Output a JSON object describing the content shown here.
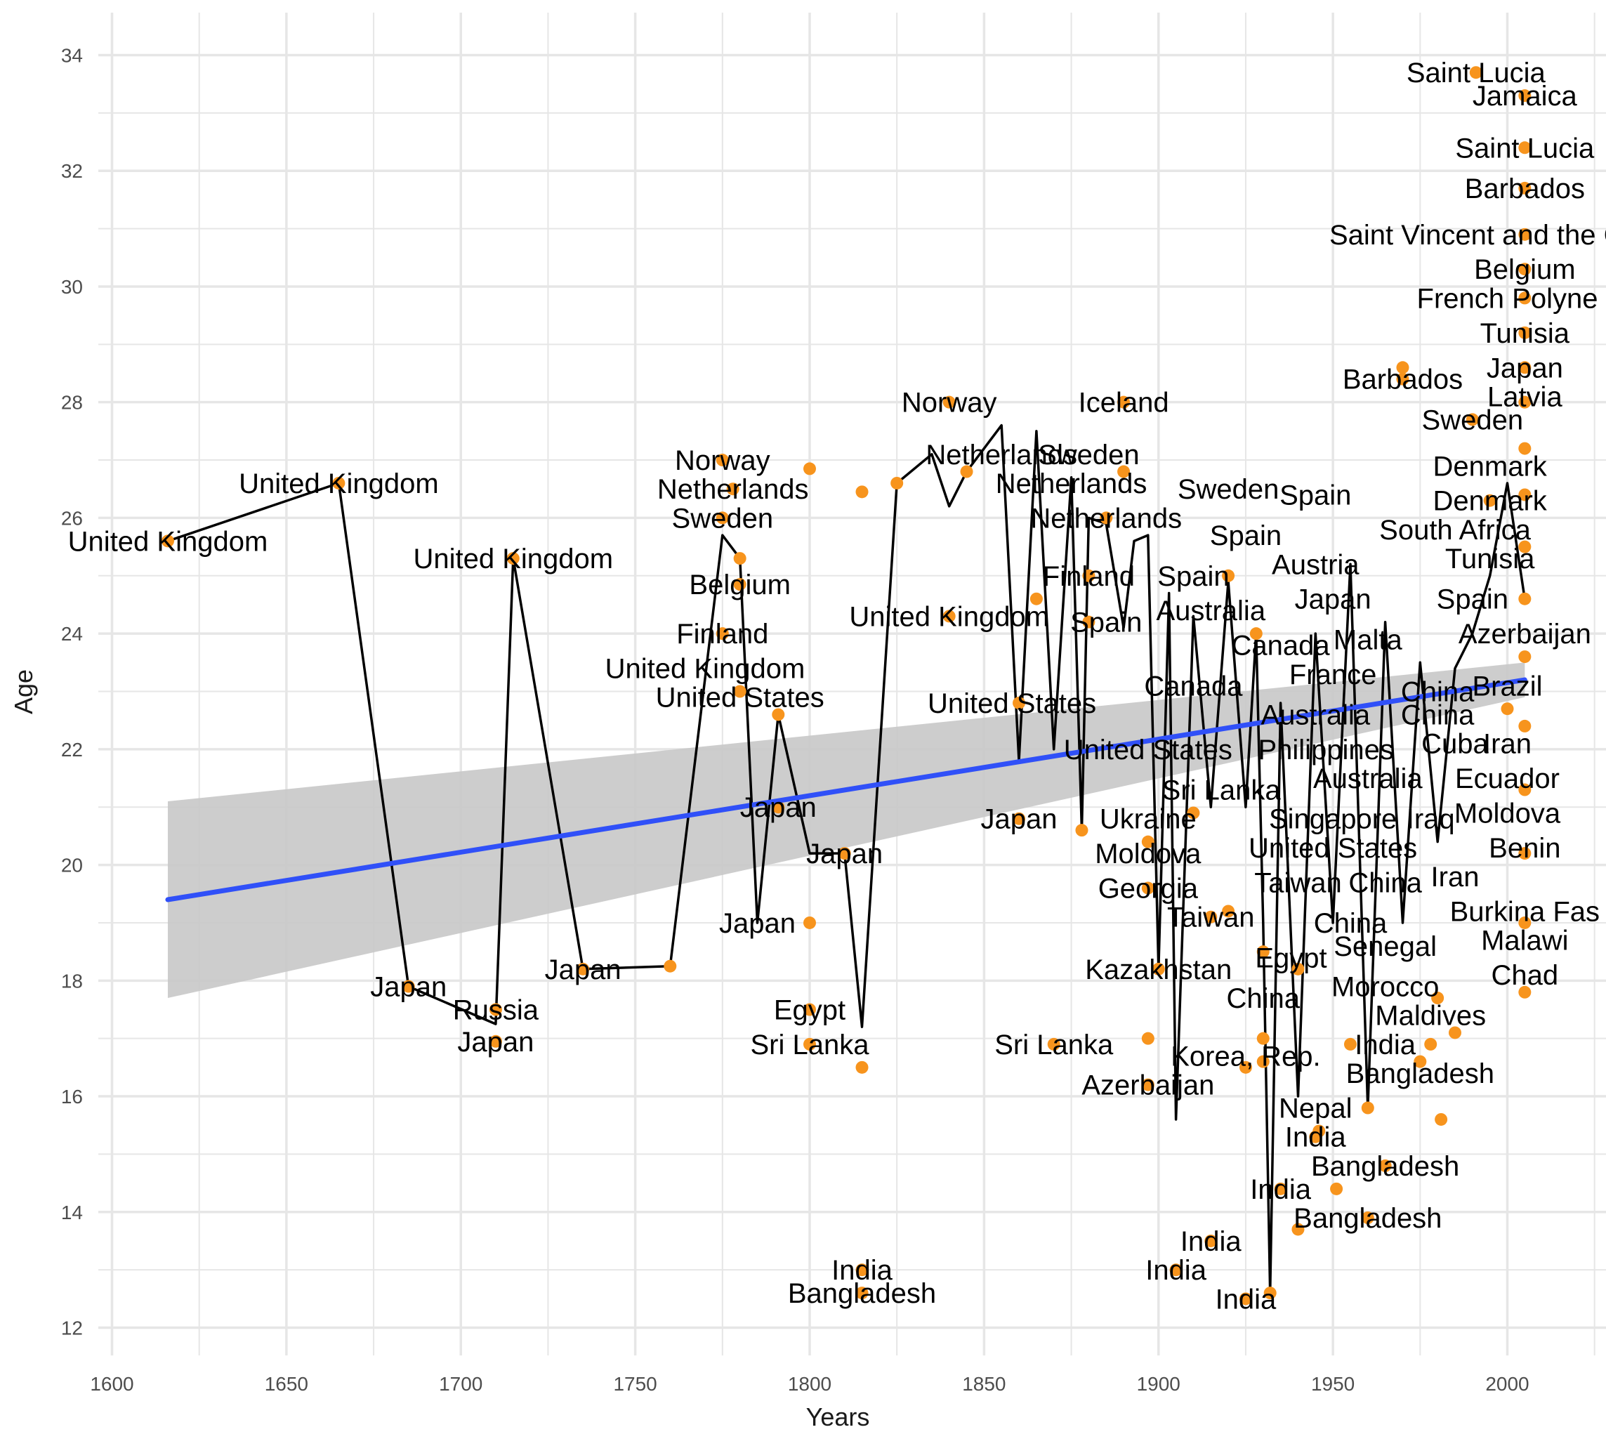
{
  "colors": {
    "points": "#F7941D",
    "line": "#000000",
    "trend": "#3050F8",
    "ribbon": "#C8C8C8",
    "grid": "#E6E6E6"
  },
  "chart_data": {
    "type": "scatter",
    "xlabel": "Years",
    "ylabel": "Age",
    "xlim": [
      1600,
      2025
    ],
    "ylim": [
      12,
      34.5
    ],
    "x_ticks": [
      1600,
      1650,
      1700,
      1750,
      1800,
      1850,
      1900,
      1950,
      2000
    ],
    "y_ticks": [
      12,
      14,
      16,
      18,
      20,
      22,
      24,
      26,
      28,
      30,
      32,
      34
    ],
    "grid": true,
    "trend": {
      "method": "linear",
      "x": [
        1616,
        2005
      ],
      "y": [
        19.4,
        23.2
      ],
      "ci_lower": [
        17.7,
        22.9
      ],
      "ci_upper": [
        21.1,
        23.5
      ]
    },
    "points": [
      {
        "x": 1616,
        "y": 25.6
      },
      {
        "x": 1665,
        "y": 26.6
      },
      {
        "x": 1685,
        "y": 17.9
      },
      {
        "x": 1710,
        "y": 17.5
      },
      {
        "x": 1710,
        "y": 16.95
      },
      {
        "x": 1715,
        "y": 25.3
      },
      {
        "x": 1735,
        "y": 18.2
      },
      {
        "x": 1760,
        "y": 18.25
      },
      {
        "x": 1775,
        "y": 27.0
      },
      {
        "x": 1775,
        "y": 26.0
      },
      {
        "x": 1775,
        "y": 24.0
      },
      {
        "x": 1778,
        "y": 26.5
      },
      {
        "x": 1780,
        "y": 25.3
      },
      {
        "x": 1780,
        "y": 24.85
      },
      {
        "x": 1780,
        "y": 23.0
      },
      {
        "x": 1791,
        "y": 22.6
      },
      {
        "x": 1791,
        "y": 21.0
      },
      {
        "x": 1800,
        "y": 26.85
      },
      {
        "x": 1800,
        "y": 19.0
      },
      {
        "x": 1800,
        "y": 17.5
      },
      {
        "x": 1800,
        "y": 16.9
      },
      {
        "x": 1810,
        "y": 20.2
      },
      {
        "x": 1815,
        "y": 26.45
      },
      {
        "x": 1815,
        "y": 16.5
      },
      {
        "x": 1815,
        "y": 13.0
      },
      {
        "x": 1815,
        "y": 12.6
      },
      {
        "x": 1825,
        "y": 26.6
      },
      {
        "x": 1840,
        "y": 28.0
      },
      {
        "x": 1840,
        "y": 24.3
      },
      {
        "x": 1845,
        "y": 26.8
      },
      {
        "x": 1860,
        "y": 22.8
      },
      {
        "x": 1860,
        "y": 20.8
      },
      {
        "x": 1865,
        "y": 24.6
      },
      {
        "x": 1870,
        "y": 16.9
      },
      {
        "x": 1878,
        "y": 20.6
      },
      {
        "x": 1880,
        "y": 25.0
      },
      {
        "x": 1880,
        "y": 24.2
      },
      {
        "x": 1885,
        "y": 26.0
      },
      {
        "x": 1890,
        "y": 26.8
      },
      {
        "x": 1890,
        "y": 28.0
      },
      {
        "x": 1897,
        "y": 17.0
      },
      {
        "x": 1897,
        "y": 16.2
      },
      {
        "x": 1897,
        "y": 19.6
      },
      {
        "x": 1897,
        "y": 20.4
      },
      {
        "x": 1900,
        "y": 18.2
      },
      {
        "x": 1905,
        "y": 13.0
      },
      {
        "x": 1910,
        "y": 20.9
      },
      {
        "x": 1915,
        "y": 13.5
      },
      {
        "x": 1915,
        "y": 19.1
      },
      {
        "x": 1920,
        "y": 25.0
      },
      {
        "x": 1920,
        "y": 19.2
      },
      {
        "x": 1925,
        "y": 16.5
      },
      {
        "x": 1925,
        "y": 12.5
      },
      {
        "x": 1928,
        "y": 24.0
      },
      {
        "x": 1930,
        "y": 17.0
      },
      {
        "x": 1930,
        "y": 16.6
      },
      {
        "x": 1930,
        "y": 18.5
      },
      {
        "x": 1932,
        "y": 12.6
      },
      {
        "x": 1935,
        "y": 14.4
      },
      {
        "x": 1940,
        "y": 13.7
      },
      {
        "x": 1940,
        "y": 18.2
      },
      {
        "x": 1945,
        "y": 15.3
      },
      {
        "x": 1946,
        "y": 15.4
      },
      {
        "x": 1951,
        "y": 14.4
      },
      {
        "x": 1955,
        "y": 16.9
      },
      {
        "x": 1960,
        "y": 15.8
      },
      {
        "x": 1960,
        "y": 13.9
      },
      {
        "x": 1965,
        "y": 14.8
      },
      {
        "x": 1970,
        "y": 28.6
      },
      {
        "x": 1970,
        "y": 28.4
      },
      {
        "x": 1975,
        "y": 16.6
      },
      {
        "x": 1978,
        "y": 16.9
      },
      {
        "x": 1980,
        "y": 17.7
      },
      {
        "x": 1981,
        "y": 15.6
      },
      {
        "x": 1985,
        "y": 17.1
      },
      {
        "x": 1990,
        "y": 27.7
      },
      {
        "x": 1991,
        "y": 33.7
      },
      {
        "x": 1995,
        "y": 26.3
      },
      {
        "x": 2000,
        "y": 22.7
      },
      {
        "x": 2005,
        "y": 33.3
      },
      {
        "x": 2005,
        "y": 32.4
      },
      {
        "x": 2005,
        "y": 31.7
      },
      {
        "x": 2005,
        "y": 30.9
      },
      {
        "x": 2005,
        "y": 30.3
      },
      {
        "x": 2005,
        "y": 29.8
      },
      {
        "x": 2005,
        "y": 29.2
      },
      {
        "x": 2005,
        "y": 28.6
      },
      {
        "x": 2005,
        "y": 28.0
      },
      {
        "x": 2005,
        "y": 27.2
      },
      {
        "x": 2005,
        "y": 26.4
      },
      {
        "x": 2005,
        "y": 25.5
      },
      {
        "x": 2005,
        "y": 24.6
      },
      {
        "x": 2005,
        "y": 23.6
      },
      {
        "x": 2005,
        "y": 22.4
      },
      {
        "x": 2005,
        "y": 21.3
      },
      {
        "x": 2005,
        "y": 20.2
      },
      {
        "x": 2005,
        "y": 19.0
      },
      {
        "x": 2005,
        "y": 17.8
      }
    ],
    "line": [
      {
        "x": 1616,
        "y": 25.6
      },
      {
        "x": 1665,
        "y": 26.6
      },
      {
        "x": 1685,
        "y": 17.9
      },
      {
        "x": 1710,
        "y": 17.25
      },
      {
        "x": 1715,
        "y": 25.3
      },
      {
        "x": 1735,
        "y": 18.2
      },
      {
        "x": 1760,
        "y": 18.25
      },
      {
        "x": 1775,
        "y": 25.7
      },
      {
        "x": 1780,
        "y": 25.3
      },
      {
        "x": 1785,
        "y": 19.0
      },
      {
        "x": 1791,
        "y": 22.6
      },
      {
        "x": 1800,
        "y": 20.2
      },
      {
        "x": 1810,
        "y": 20.2
      },
      {
        "x": 1815,
        "y": 17.2
      },
      {
        "x": 1825,
        "y": 26.6
      },
      {
        "x": 1835,
        "y": 27.1
      },
      {
        "x": 1840,
        "y": 26.2
      },
      {
        "x": 1845,
        "y": 26.8
      },
      {
        "x": 1855,
        "y": 27.6
      },
      {
        "x": 1860,
        "y": 21.8
      },
      {
        "x": 1865,
        "y": 27.5
      },
      {
        "x": 1870,
        "y": 22.0
      },
      {
        "x": 1875,
        "y": 26.7
      },
      {
        "x": 1878,
        "y": 20.6
      },
      {
        "x": 1880,
        "y": 26.0
      },
      {
        "x": 1885,
        "y": 25.9
      },
      {
        "x": 1890,
        "y": 24.1
      },
      {
        "x": 1893,
        "y": 25.6
      },
      {
        "x": 1897,
        "y": 25.7
      },
      {
        "x": 1900,
        "y": 18.2
      },
      {
        "x": 1903,
        "y": 24.7
      },
      {
        "x": 1905,
        "y": 15.6
      },
      {
        "x": 1910,
        "y": 24.3
      },
      {
        "x": 1915,
        "y": 21.0
      },
      {
        "x": 1920,
        "y": 24.9
      },
      {
        "x": 1925,
        "y": 21.0
      },
      {
        "x": 1928,
        "y": 24.0
      },
      {
        "x": 1930,
        "y": 19.0
      },
      {
        "x": 1932,
        "y": 12.6
      },
      {
        "x": 1935,
        "y": 22.8
      },
      {
        "x": 1940,
        "y": 16.0
      },
      {
        "x": 1945,
        "y": 24.0
      },
      {
        "x": 1950,
        "y": 19.0
      },
      {
        "x": 1955,
        "y": 25.2
      },
      {
        "x": 1960,
        "y": 15.8
      },
      {
        "x": 1965,
        "y": 24.2
      },
      {
        "x": 1970,
        "y": 19.0
      },
      {
        "x": 1975,
        "y": 23.5
      },
      {
        "x": 1980,
        "y": 20.4
      },
      {
        "x": 1985,
        "y": 23.4
      },
      {
        "x": 1990,
        "y": 24.0
      },
      {
        "x": 1995,
        "y": 25.0
      },
      {
        "x": 2000,
        "y": 26.6
      },
      {
        "x": 2005,
        "y": 24.6
      }
    ],
    "labels": [
      {
        "text": "United Kingdom",
        "x": 1616,
        "y": 25.6
      },
      {
        "text": "United Kingdom",
        "x": 1665,
        "y": 26.6
      },
      {
        "text": "United Kingdom",
        "x": 1715,
        "y": 25.3
      },
      {
        "text": "Japan",
        "x": 1685,
        "y": 17.9
      },
      {
        "text": "Russia",
        "x": 1710,
        "y": 17.5
      },
      {
        "text": "Japan",
        "x": 1710,
        "y": 16.95
      },
      {
        "text": "Japan",
        "x": 1735,
        "y": 18.2
      },
      {
        "text": "Norway",
        "x": 1775,
        "y": 27.0
      },
      {
        "text": "Netherlands",
        "x": 1778,
        "y": 26.5
      },
      {
        "text": "Sweden",
        "x": 1775,
        "y": 26.0
      },
      {
        "text": "Belgium",
        "x": 1780,
        "y": 24.85
      },
      {
        "text": "Finland",
        "x": 1775,
        "y": 24.0
      },
      {
        "text": "United Kingdom",
        "x": 1770,
        "y": 23.4
      },
      {
        "text": "United States",
        "x": 1780,
        "y": 22.9
      },
      {
        "text": "Japan",
        "x": 1791,
        "y": 21.0
      },
      {
        "text": "Japan",
        "x": 1810,
        "y": 20.2
      },
      {
        "text": "Japan",
        "x": 1785,
        "y": 19.0
      },
      {
        "text": "Egypt",
        "x": 1800,
        "y": 17.5
      },
      {
        "text": "Sri Lanka",
        "x": 1800,
        "y": 16.9
      },
      {
        "text": "India",
        "x": 1815,
        "y": 13.0
      },
      {
        "text": "Bangladesh",
        "x": 1815,
        "y": 12.6
      },
      {
        "text": "Norway",
        "x": 1840,
        "y": 28.0
      },
      {
        "text": "Netherlands",
        "x": 1855,
        "y": 27.1
      },
      {
        "text": "Sweden",
        "x": 1880,
        "y": 27.1
      },
      {
        "text": "Iceland",
        "x": 1890,
        "y": 28.0
      },
      {
        "text": "Netherlands",
        "x": 1875,
        "y": 26.6
      },
      {
        "text": "Netherlands",
        "x": 1885,
        "y": 26.0
      },
      {
        "text": "Finland",
        "x": 1880,
        "y": 25.0
      },
      {
        "text": "Spain",
        "x": 1910,
        "y": 25.0
      },
      {
        "text": "United Kingdom",
        "x": 1840,
        "y": 24.3
      },
      {
        "text": "Spain",
        "x": 1885,
        "y": 24.2
      },
      {
        "text": "Australia",
        "x": 1915,
        "y": 24.4
      },
      {
        "text": "Sweden",
        "x": 1920,
        "y": 26.5
      },
      {
        "text": "Spain",
        "x": 1945,
        "y": 26.4
      },
      {
        "text": "Spain",
        "x": 1925,
        "y": 25.7
      },
      {
        "text": "United States",
        "x": 1858,
        "y": 22.8
      },
      {
        "text": "United States",
        "x": 1897,
        "y": 22.0
      },
      {
        "text": "Canada",
        "x": 1910,
        "y": 23.1
      },
      {
        "text": "Canada",
        "x": 1935,
        "y": 23.8
      },
      {
        "text": "Austria",
        "x": 1945,
        "y": 25.2
      },
      {
        "text": "Japan",
        "x": 1950,
        "y": 24.6
      },
      {
        "text": "Malta",
        "x": 1960,
        "y": 23.9
      },
      {
        "text": "France",
        "x": 1950,
        "y": 23.3
      },
      {
        "text": "Australia",
        "x": 1945,
        "y": 22.6
      },
      {
        "text": "Philippines",
        "x": 1948,
        "y": 22.0
      },
      {
        "text": "Australia",
        "x": 1960,
        "y": 21.5
      },
      {
        "text": "Sri Lanka",
        "x": 1918,
        "y": 21.3
      },
      {
        "text": "Ukraine",
        "x": 1897,
        "y": 20.8
      },
      {
        "text": "Japan",
        "x": 1860,
        "y": 20.8
      },
      {
        "text": "Moldova",
        "x": 1897,
        "y": 20.2
      },
      {
        "text": "Singapore",
        "x": 1950,
        "y": 20.8
      },
      {
        "text": "Iraq",
        "x": 1978,
        "y": 20.8
      },
      {
        "text": "United States",
        "x": 1950,
        "y": 20.3
      },
      {
        "text": "Georgia",
        "x": 1897,
        "y": 19.6
      },
      {
        "text": "Taiwan",
        "x": 1940,
        "y": 19.7
      },
      {
        "text": "China",
        "x": 1965,
        "y": 19.7
      },
      {
        "text": "Taiwan",
        "x": 1915,
        "y": 19.1
      },
      {
        "text": "China",
        "x": 1955,
        "y": 19.0
      },
      {
        "text": "Senegal",
        "x": 1965,
        "y": 18.6
      },
      {
        "text": "Egypt",
        "x": 1938,
        "y": 18.4
      },
      {
        "text": "Kazakhstan",
        "x": 1900,
        "y": 18.2
      },
      {
        "text": "Morocco",
        "x": 1965,
        "y": 17.9
      },
      {
        "text": "China",
        "x": 1930,
        "y": 17.7
      },
      {
        "text": "Maldives",
        "x": 1978,
        "y": 17.4
      },
      {
        "text": "India",
        "x": 1965,
        "y": 16.9
      },
      {
        "text": "Sri Lanka",
        "x": 1870,
        "y": 16.9
      },
      {
        "text": "Korea, Rep.",
        "x": 1925,
        "y": 16.7
      },
      {
        "text": "Azerbaijan",
        "x": 1897,
        "y": 16.2
      },
      {
        "text": "Bangladesh",
        "x": 1975,
        "y": 16.4
      },
      {
        "text": "Nepal",
        "x": 1945,
        "y": 15.8
      },
      {
        "text": "India",
        "x": 1945,
        "y": 15.3
      },
      {
        "text": "Bangladesh",
        "x": 1965,
        "y": 14.8
      },
      {
        "text": "India",
        "x": 1935,
        "y": 14.4
      },
      {
        "text": "Bangladesh",
        "x": 1960,
        "y": 13.9
      },
      {
        "text": "India",
        "x": 1915,
        "y": 13.5
      },
      {
        "text": "India",
        "x": 1905,
        "y": 13.0
      },
      {
        "text": "India",
        "x": 1925,
        "y": 12.5
      },
      {
        "text": "Saint Lucia",
        "x": 1991,
        "y": 33.7
      },
      {
        "text": "Jamaica",
        "x": 2005,
        "y": 33.3
      },
      {
        "text": "Saint Lucia",
        "x": 2005,
        "y": 32.4
      },
      {
        "text": "Barbados",
        "x": 2005,
        "y": 31.7
      },
      {
        "text": "Saint Vincent and the Gre",
        "x": 1995,
        "y": 30.9
      },
      {
        "text": "Belgium",
        "x": 2005,
        "y": 30.3
      },
      {
        "text": "French Polyne",
        "x": 2000,
        "y": 29.8
      },
      {
        "text": "Tunisia",
        "x": 2005,
        "y": 29.2
      },
      {
        "text": "Barbados",
        "x": 1970,
        "y": 28.4
      },
      {
        "text": "Japan",
        "x": 2005,
        "y": 28.6
      },
      {
        "text": "Latvia",
        "x": 2005,
        "y": 28.1
      },
      {
        "text": "Sweden",
        "x": 1990,
        "y": 27.7
      },
      {
        "text": "Denmark",
        "x": 1995,
        "y": 26.9
      },
      {
        "text": "Denmark",
        "x": 1995,
        "y": 26.3
      },
      {
        "text": "South Africa",
        "x": 1985,
        "y": 25.8
      },
      {
        "text": "Tunisia",
        "x": 1995,
        "y": 25.3
      },
      {
        "text": "Spain",
        "x": 1990,
        "y": 24.6
      },
      {
        "text": "Azerbaijan",
        "x": 2005,
        "y": 24.0
      },
      {
        "text": "China",
        "x": 1980,
        "y": 23.0
      },
      {
        "text": "Brazil",
        "x": 2000,
        "y": 23.1
      },
      {
        "text": "China",
        "x": 1980,
        "y": 22.6
      },
      {
        "text": "Cuba",
        "x": 1985,
        "y": 22.1
      },
      {
        "text": "Iran",
        "x": 2000,
        "y": 22.1
      },
      {
        "text": "Ecuador",
        "x": 2000,
        "y": 21.5
      },
      {
        "text": "Moldova",
        "x": 2000,
        "y": 20.9
      },
      {
        "text": "Benin",
        "x": 2005,
        "y": 20.3
      },
      {
        "text": "Iran",
        "x": 1985,
        "y": 19.8
      },
      {
        "text": "Burkina Fas",
        "x": 2005,
        "y": 19.2
      },
      {
        "text": "Malawi",
        "x": 2005,
        "y": 18.7
      },
      {
        "text": "Chad",
        "x": 2005,
        "y": 18.1
      }
    ]
  }
}
